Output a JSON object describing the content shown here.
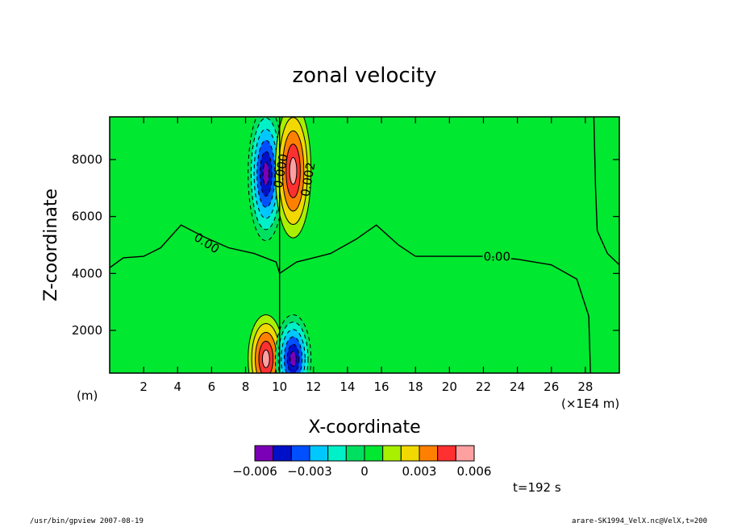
{
  "chart_data": {
    "type": "heatmap",
    "title": "zonal velocity",
    "xlabel": "X-coordinate",
    "ylabel": "Z-coordinate",
    "x_unit_left": "(m)",
    "x_unit_right": "(×1E4 m)",
    "xlim": [
      0,
      30
    ],
    "ylim": [
      500,
      9500
    ],
    "x_ticks": [
      "2",
      "4",
      "6",
      "8",
      "10",
      "12",
      "14",
      "16",
      "18",
      "20",
      "22",
      "24",
      "26",
      "28"
    ],
    "x_tick_values": [
      2,
      4,
      6,
      8,
      10,
      12,
      14,
      16,
      18,
      20,
      22,
      24,
      26,
      28
    ],
    "y_ticks": [
      "2000",
      "4000",
      "6000",
      "8000"
    ],
    "y_tick_values": [
      2000,
      4000,
      6000,
      8000
    ],
    "contour_labels": [
      "0.00",
      "0.00",
      "0.002",
      "0.000"
    ],
    "colorbar": {
      "colors": [
        "#7b00b5",
        "#0010c8",
        "#0050ff",
        "#00c8ff",
        "#00f0c8",
        "#00e060",
        "#00e830",
        "#a8f000",
        "#f0d800",
        "#ff8000",
        "#ff3030",
        "#ffa0a0"
      ],
      "levels": [
        -0.006,
        -0.005,
        -0.004,
        -0.003,
        -0.002,
        -0.001,
        0,
        0.001,
        0.002,
        0.003,
        0.004,
        0.005,
        0.006
      ],
      "tick_labels": [
        "−0.006",
        "−0.003",
        "0",
        "0.003",
        "0.006"
      ]
    },
    "features": {
      "upper_negative_center": [
        9.2,
        7500
      ],
      "upper_positive_center": [
        10.8,
        7600
      ],
      "lower_positive_center": [
        9.2,
        1000
      ],
      "lower_negative_center": [
        10.8,
        1000
      ],
      "background_value": 0
    }
  },
  "time_label": "t=192 s",
  "footer_left": "/usr/bin/gpview   2007-08-19",
  "footer_right": "arare-SK1994_VelX.nc@VelX,t=200"
}
